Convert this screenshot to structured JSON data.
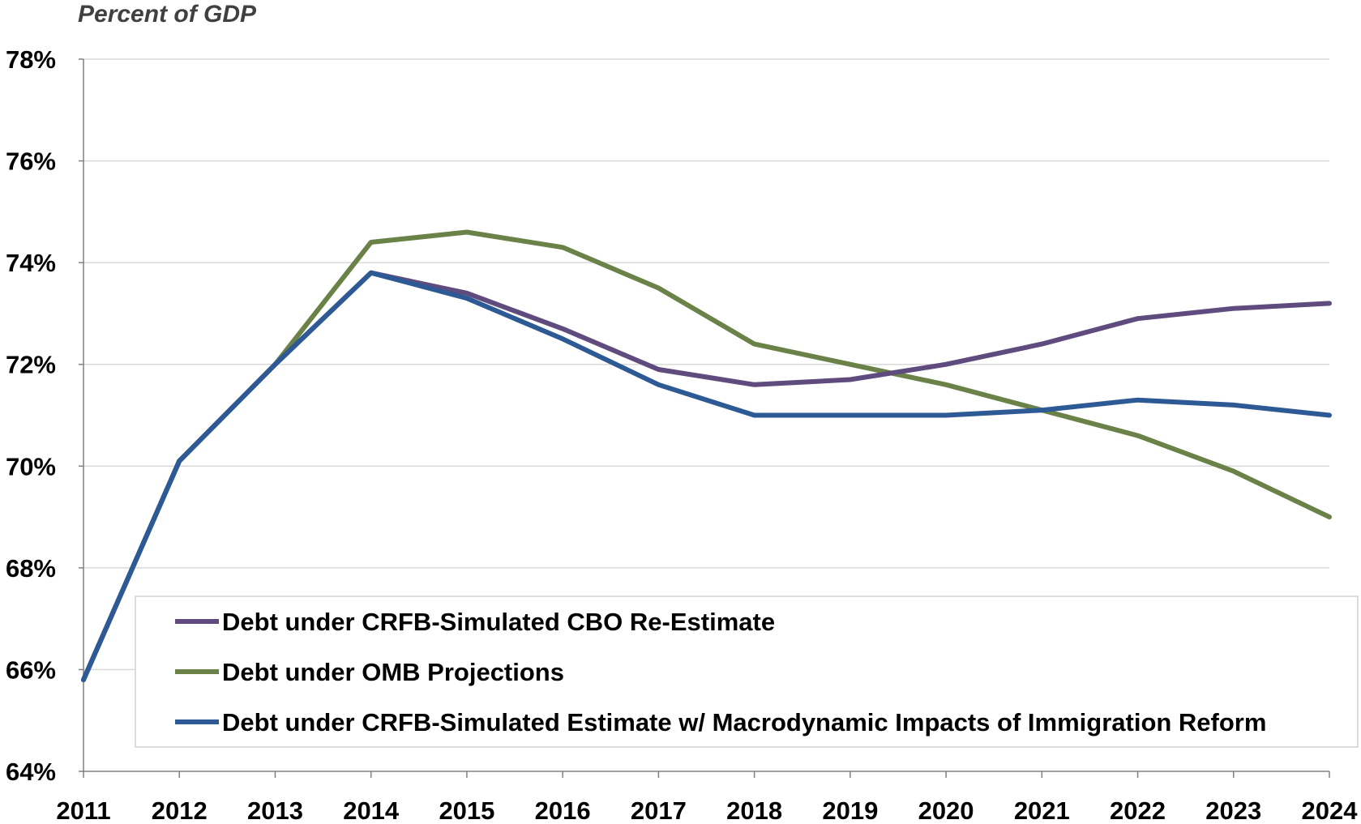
{
  "chart_data": {
    "type": "line",
    "title": "",
    "unit_label": "Percent of GDP",
    "xlabel": "",
    "ylabel": "",
    "categories": [
      "2011",
      "2012",
      "2013",
      "2014",
      "2015",
      "2016",
      "2017",
      "2018",
      "2019",
      "2020",
      "2021",
      "2022",
      "2023",
      "2024"
    ],
    "y_tick_labels": [
      "64%",
      "66%",
      "68%",
      "70%",
      "72%",
      "74%",
      "76%",
      "78%"
    ],
    "ylim": [
      64,
      78
    ],
    "y_step": 2,
    "grid": true,
    "legend_position": "bottom-inside",
    "series": [
      {
        "name": "Debt under CRFB-Simulated CBO Re-Estimate",
        "color": "#5f4b7e",
        "values": [
          65.8,
          70.1,
          72.0,
          73.8,
          73.4,
          72.7,
          71.9,
          71.6,
          71.7,
          72.0,
          72.4,
          72.9,
          73.1,
          73.2
        ]
      },
      {
        "name": "Debt under OMB Projections",
        "color": "#6a8248",
        "values": [
          65.8,
          70.1,
          72.0,
          74.4,
          74.6,
          74.3,
          73.5,
          72.4,
          72.0,
          71.6,
          71.1,
          70.6,
          69.9,
          69.0
        ]
      },
      {
        "name": "Debt under CRFB-Simulated Estimate w/ Macrodynamic Impacts of Immigration Reform",
        "color": "#2d5a94",
        "values": [
          65.8,
          70.1,
          72.0,
          73.8,
          73.3,
          72.5,
          71.6,
          71.0,
          71.0,
          71.0,
          71.1,
          71.3,
          71.2,
          71.0
        ]
      }
    ]
  }
}
